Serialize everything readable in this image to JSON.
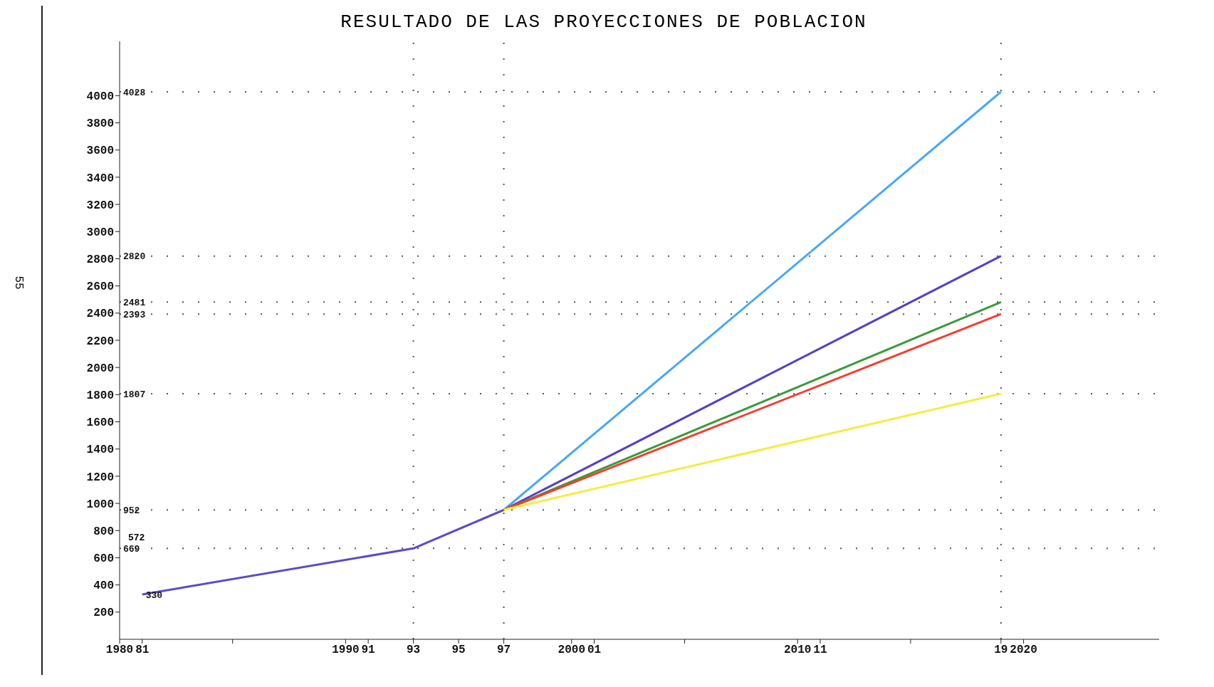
{
  "chart_data": {
    "type": "line",
    "title": "RESULTADO DE LAS PROYECCIONES DE POBLACION",
    "xlim": [
      1980,
      2026
    ],
    "xticks": [
      {
        "value": 1980,
        "label": "1980"
      },
      {
        "value": 1981,
        "label": "81"
      },
      {
        "value": 1985,
        "label": null
      },
      {
        "value": 1990,
        "label": "1990"
      },
      {
        "value": 1991,
        "label": "91"
      },
      {
        "value": 1993,
        "label": "93"
      },
      {
        "value": 1995,
        "label": "95"
      },
      {
        "value": 1997,
        "label": "97"
      },
      {
        "value": 2000,
        "label": "2000"
      },
      {
        "value": 2001,
        "label": "01"
      },
      {
        "value": 2005,
        "label": null
      },
      {
        "value": 2010,
        "label": "2010"
      },
      {
        "value": 2011,
        "label": "11"
      },
      {
        "value": 2015,
        "label": null
      },
      {
        "value": 2019,
        "label": "19"
      },
      {
        "value": 2020,
        "label": "2020"
      }
    ],
    "ylim": [
      0,
      4400
    ],
    "yticks": [
      200,
      400,
      600,
      800,
      1000,
      1200,
      1400,
      1600,
      1800,
      2000,
      2200,
      2400,
      2600,
      2800,
      3000,
      3200,
      3400,
      3600,
      3800,
      4000
    ],
    "grid": false,
    "legend": false,
    "marker": "none",
    "line_style": "solid",
    "series": [
      {
        "color": "#5a4cc8",
        "x": [
          1981,
          1993,
          1997
        ],
        "values": [
          330,
          669,
          952
        ]
      },
      {
        "color": "#4aa8f0",
        "x": [
          1997,
          2019
        ],
        "values": [
          952,
          4028
        ]
      },
      {
        "color": "#5a3fc0",
        "x": [
          1997,
          2019
        ],
        "values": [
          952,
          2820
        ]
      },
      {
        "color": "#3a9a3a",
        "x": [
          1997,
          2019
        ],
        "values": [
          952,
          2481
        ]
      },
      {
        "color": "#f04030",
        "x": [
          1997,
          2019
        ],
        "values": [
          952,
          2393
        ]
      },
      {
        "color": "#f4ec40",
        "x": [
          1997,
          2019
        ],
        "values": [
          952,
          1807
        ]
      }
    ],
    "ref_lines": [
      {
        "axis": "y",
        "value": 4028,
        "label": "4028",
        "line_style": "dotted",
        "color": "#555555"
      },
      {
        "axis": "y",
        "value": 2820,
        "label": "2820",
        "line_style": "dotted",
        "color": "#555555"
      },
      {
        "axis": "y",
        "value": 2481,
        "label": "2481",
        "line_style": "dotted",
        "color": "#555555"
      },
      {
        "axis": "y",
        "value": 2393,
        "label": "2393",
        "line_style": "dotted",
        "color": "#555555"
      },
      {
        "axis": "y",
        "value": 1807,
        "label": "1807",
        "line_style": "dotted",
        "color": "#555555"
      },
      {
        "axis": "y",
        "value": 952,
        "label": "952",
        "line_style": "dotted",
        "color": "#555555"
      },
      {
        "axis": "y",
        "value": 669,
        "label": "669",
        "line_style": "dotted",
        "color": "#555555"
      },
      {
        "axis": "x",
        "value": 1993,
        "line_style": "dotted",
        "color": "#555555"
      },
      {
        "axis": "x",
        "value": 1997,
        "line_style": "dotted",
        "color": "#555555"
      },
      {
        "axis": "x",
        "value": 2019,
        "line_style": "dotted",
        "color": "#555555"
      }
    ],
    "annotations": [
      "572",
      {
        "text": "330",
        "x": 1981,
        "y": 330
      },
      "55"
    ]
  }
}
